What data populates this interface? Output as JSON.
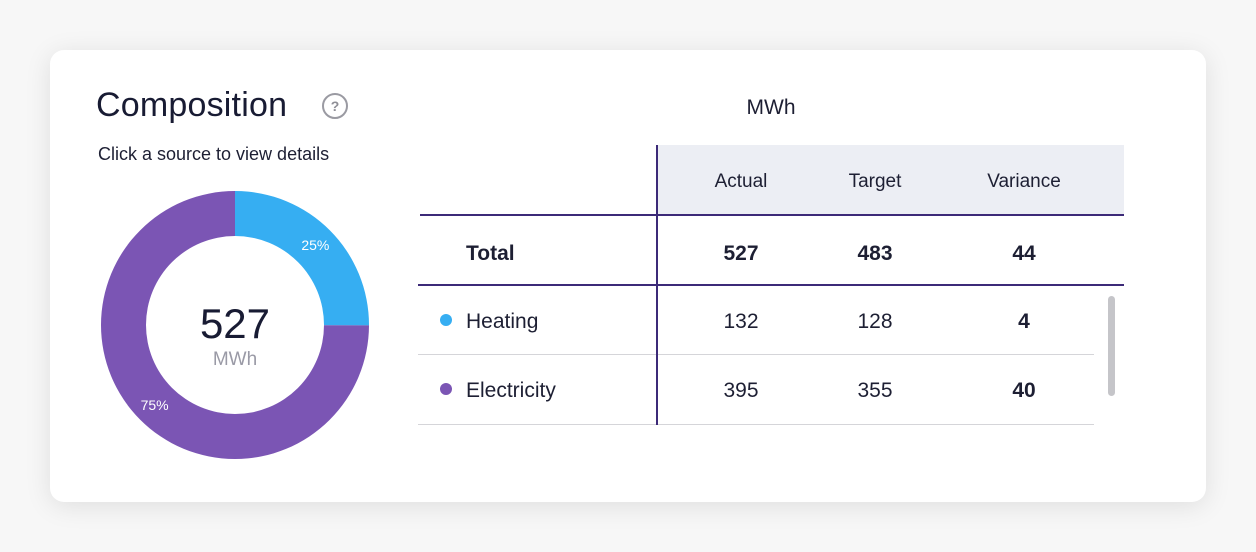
{
  "card": {
    "title": "Composition",
    "help_icon": "question-mark-icon",
    "help_glyph": "?",
    "subtitle": "Click a source to view details"
  },
  "chart_data": {
    "type": "pie",
    "style": "donut",
    "center_value": "527",
    "center_unit": "MWh",
    "slices": [
      {
        "label": "Heating",
        "value": 132,
        "percent_label": "25%",
        "color": "#36aef2"
      },
      {
        "label": "Electricity",
        "value": 395,
        "percent_label": "75%",
        "color": "#7b55b4"
      }
    ]
  },
  "table": {
    "unit": "MWh",
    "columns": [
      "Actual",
      "Target",
      "Variance"
    ],
    "total": {
      "label": "Total",
      "actual": "527",
      "target": "483",
      "variance": "44"
    },
    "rows": [
      {
        "label": "Heating",
        "color": "#36aef2",
        "actual": "132",
        "target": "128",
        "variance": "4"
      },
      {
        "label": "Electricity",
        "color": "#7b55b4",
        "actual": "395",
        "target": "355",
        "variance": "40"
      }
    ]
  }
}
